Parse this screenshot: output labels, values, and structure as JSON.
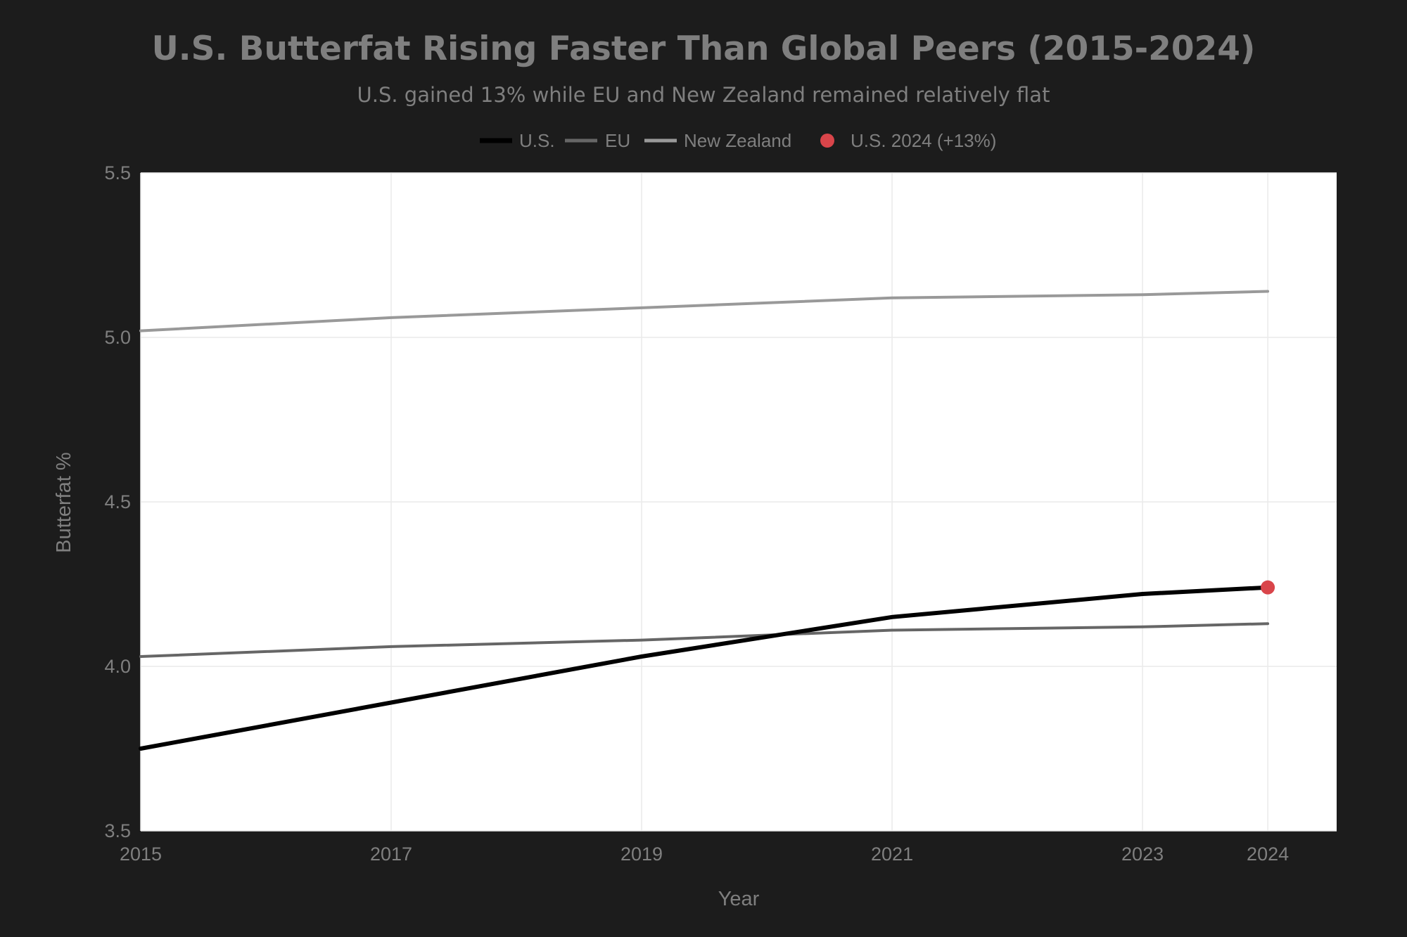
{
  "chart_data": {
    "type": "line",
    "title": "U.S. Butterfat Rising Faster Than Global Peers (2015-2024)",
    "subtitle": "U.S. gained 13% while EU and New Zealand remained relatively flat",
    "xlabel": "Year",
    "ylabel": "Butterfat %",
    "x_ticks": [
      "2015",
      "2017",
      "2019",
      "2021",
      "2023",
      "2024"
    ],
    "y_ticks": [
      "3.5",
      "4.0",
      "4.5",
      "5.0",
      "5.5"
    ],
    "xlim": [
      2015,
      2024.55
    ],
    "ylim": [
      3.5,
      5.5
    ],
    "grid": true,
    "legend_position": "top-center",
    "series": [
      {
        "name": "U.S.",
        "color": "#000000",
        "x": [
          2015,
          2017,
          2019,
          2021,
          2023,
          2024
        ],
        "values": [
          3.75,
          3.89,
          4.03,
          4.15,
          4.22,
          4.24
        ]
      },
      {
        "name": "EU",
        "color": "#666666",
        "x": [
          2015,
          2017,
          2019,
          2021,
          2023,
          2024
        ],
        "values": [
          4.03,
          4.06,
          4.08,
          4.11,
          4.12,
          4.13
        ]
      },
      {
        "name": "New Zealand",
        "color": "#999999",
        "x": [
          2015,
          2017,
          2019,
          2021,
          2023,
          2024
        ],
        "values": [
          5.02,
          5.06,
          5.09,
          5.12,
          5.13,
          5.14
        ]
      }
    ],
    "highlight": {
      "name": "U.S. 2024 (+13%)",
      "x": 2024,
      "y": 4.24,
      "color": "#d9454a"
    }
  },
  "colors": {
    "background": "#1c1c1c",
    "plot_background": "#ffffff",
    "gridline": "#eaeaea",
    "text": "#7f7f7f"
  }
}
